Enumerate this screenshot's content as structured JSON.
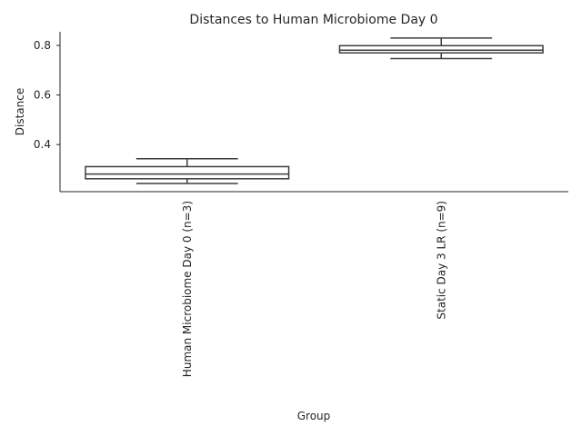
{
  "chart_data": {
    "type": "box",
    "title": "Distances to Human Microbiome Day 0",
    "xlabel": "Group",
    "ylabel": "Distance",
    "ylim": [
      0.21,
      0.855
    ],
    "yticks": [
      0.4,
      0.6,
      0.8
    ],
    "ytick_labels": [
      "0.4",
      "0.6",
      "0.8"
    ],
    "grid": false,
    "categories": [
      "Human Microbiome Day 0 (n=3)",
      "Static Day 3 LR (n=9)"
    ],
    "boxes": [
      {
        "category": "Human Microbiome Day 0 (n=3)",
        "whisker_low": 0.243,
        "q1": 0.262,
        "median": 0.281,
        "q3": 0.311,
        "whisker_high": 0.343
      },
      {
        "category": "Static Day 3 LR (n=9)",
        "whisker_low": 0.747,
        "q1": 0.77,
        "median": 0.781,
        "q3": 0.799,
        "whisker_high": 0.83
      }
    ]
  }
}
